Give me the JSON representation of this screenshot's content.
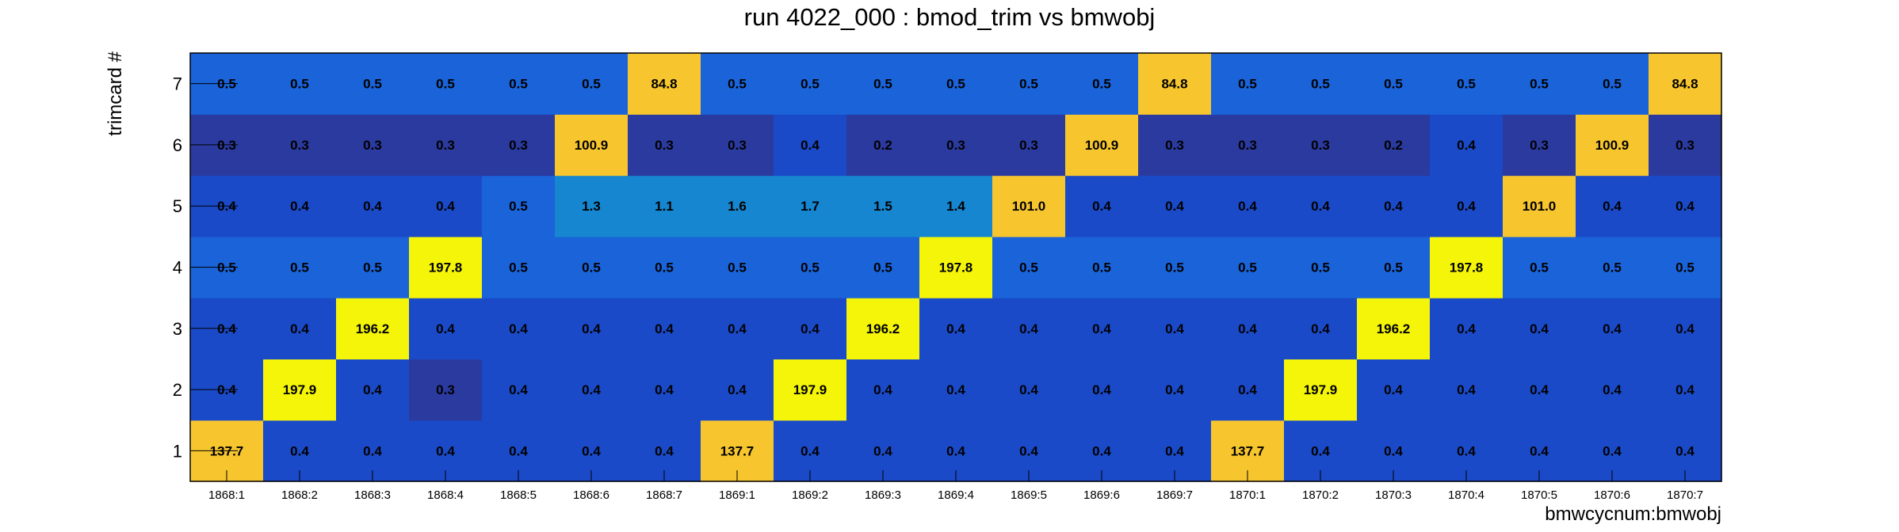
{
  "chart_data": {
    "type": "heatmap",
    "title": "run 4022_000 : bmod_trim vs bmwobj",
    "xlabel": "bmwcycnum:bmwobj",
    "ylabel": "trimcard #",
    "x": [
      "1868:1",
      "1868:2",
      "1868:3",
      "1868:4",
      "1868:5",
      "1868:6",
      "1868:7",
      "1869:1",
      "1869:2",
      "1869:3",
      "1869:4",
      "1869:5",
      "1869:6",
      "1869:7",
      "1870:1",
      "1870:2",
      "1870:3",
      "1870:4",
      "1870:5",
      "1870:6",
      "1870:7"
    ],
    "y": [
      "1",
      "2",
      "3",
      "4",
      "5",
      "6",
      "7"
    ],
    "values": [
      [
        "137.7",
        "0.4",
        "0.4",
        "0.4",
        "0.4",
        "0.4",
        "0.4",
        "137.7",
        "0.4",
        "0.4",
        "0.4",
        "0.4",
        "0.4",
        "0.4",
        "137.7",
        "0.4",
        "0.4",
        "0.4",
        "0.4",
        "0.4",
        "0.4"
      ],
      [
        "0.4",
        "197.9",
        "0.4",
        "0.3",
        "0.4",
        "0.4",
        "0.4",
        "0.4",
        "197.9",
        "0.4",
        "0.4",
        "0.4",
        "0.4",
        "0.4",
        "0.4",
        "197.9",
        "0.4",
        "0.4",
        "0.4",
        "0.4",
        "0.4"
      ],
      [
        "0.4",
        "0.4",
        "196.2",
        "0.4",
        "0.4",
        "0.4",
        "0.4",
        "0.4",
        "0.4",
        "196.2",
        "0.4",
        "0.4",
        "0.4",
        "0.4",
        "0.4",
        "0.4",
        "196.2",
        "0.4",
        "0.4",
        "0.4",
        "0.4"
      ],
      [
        "0.5",
        "0.5",
        "0.5",
        "197.8",
        "0.5",
        "0.5",
        "0.5",
        "0.5",
        "0.5",
        "0.5",
        "197.8",
        "0.5",
        "0.5",
        "0.5",
        "0.5",
        "0.5",
        "0.5",
        "197.8",
        "0.5",
        "0.5",
        "0.5"
      ],
      [
        "0.4",
        "0.4",
        "0.4",
        "0.4",
        "0.5",
        "1.3",
        "1.1",
        "1.6",
        "1.7",
        "1.5",
        "1.4",
        "101.0",
        "0.4",
        "0.4",
        "0.4",
        "0.4",
        "0.4",
        "0.4",
        "101.0",
        "0.4",
        "0.4"
      ],
      [
        "0.3",
        "0.3",
        "0.3",
        "0.3",
        "0.3",
        "100.9",
        "0.3",
        "0.3",
        "0.4",
        "0.2",
        "0.3",
        "0.3",
        "100.9",
        "0.3",
        "0.3",
        "0.3",
        "0.2",
        "0.4",
        "0.3",
        "100.9",
        "0.3"
      ],
      [
        "0.5",
        "0.5",
        "0.5",
        "0.5",
        "0.5",
        "0.5",
        "84.8",
        "0.5",
        "0.5",
        "0.5",
        "0.5",
        "0.5",
        "0.5",
        "84.8",
        "0.5",
        "0.5",
        "0.5",
        "0.5",
        "0.5",
        "0.5",
        "84.8"
      ]
    ],
    "colors": {
      "very_low": "#2a3a9e",
      "low": "#1a4ac8",
      "mid": "#1a63d9",
      "mid_high": "#1686d0",
      "high": "#f7c62f",
      "max": "#f5f50a"
    },
    "grid": false,
    "colorbar": false
  }
}
